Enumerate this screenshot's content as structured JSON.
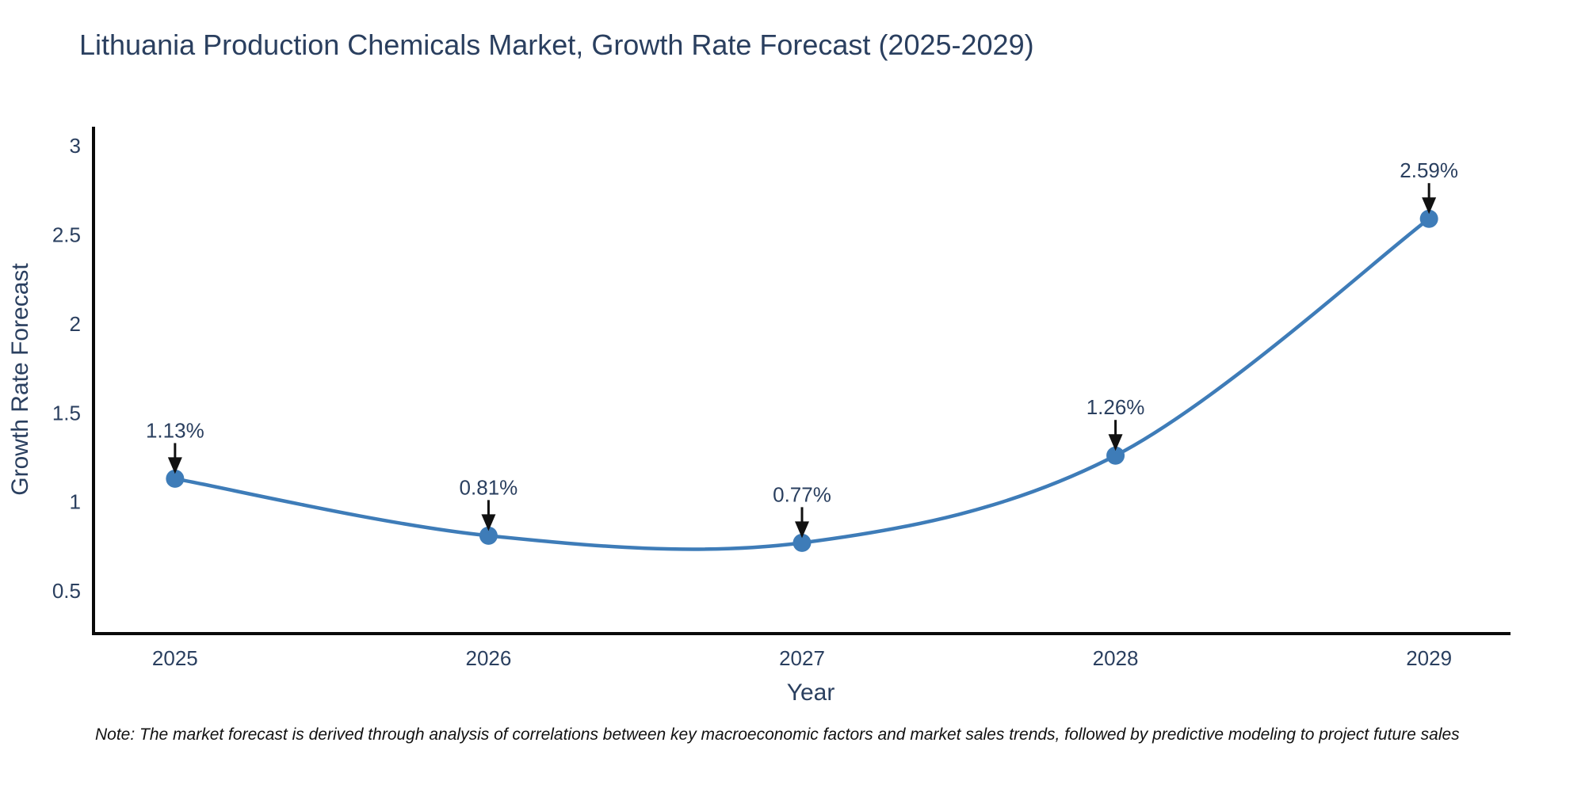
{
  "title": "Lithuania Production Chemicals Market, Growth Rate Forecast (2025-2029)",
  "note": "Note: The market forecast is derived through analysis of correlations between key macroeconomic factors and market sales trends, followed by predictive modeling to project future sales",
  "colors": {
    "title_text": "#2a3f5f",
    "tick_text": "#2a3f5f",
    "axis_line": "#0a0a0a",
    "series_line": "#3e7cb8",
    "marker_fill": "#3e7cb8",
    "annotation_arrow": "#111111",
    "background": "#ffffff"
  },
  "chart_data": {
    "type": "line",
    "title": "Lithuania Production Chemicals Market, Growth Rate Forecast (2025-2029)",
    "xlabel": "Year",
    "ylabel": "Growth Rate Forecast",
    "x": [
      2025,
      2026,
      2027,
      2028,
      2029
    ],
    "values": [
      1.13,
      0.81,
      0.77,
      1.26,
      2.59
    ],
    "point_labels": [
      "1.13%",
      "0.81%",
      "0.77%",
      "1.26%",
      "2.59%"
    ],
    "xtick_labels": [
      "2025",
      "2026",
      "2027",
      "2028",
      "2029"
    ],
    "yticks": [
      0.5,
      1,
      1.5,
      2,
      2.5,
      3
    ],
    "ytick_labels": [
      "0.5",
      "1",
      "1.5",
      "2",
      "2.5",
      "3"
    ],
    "xlim": [
      2024.74,
      2029.26
    ],
    "ylim": [
      0.26,
      3.107
    ],
    "grid": false,
    "legend_position": "none",
    "line_shape": "spline",
    "line_color": "#3e7cb8",
    "marker_color": "#3e7cb8"
  }
}
